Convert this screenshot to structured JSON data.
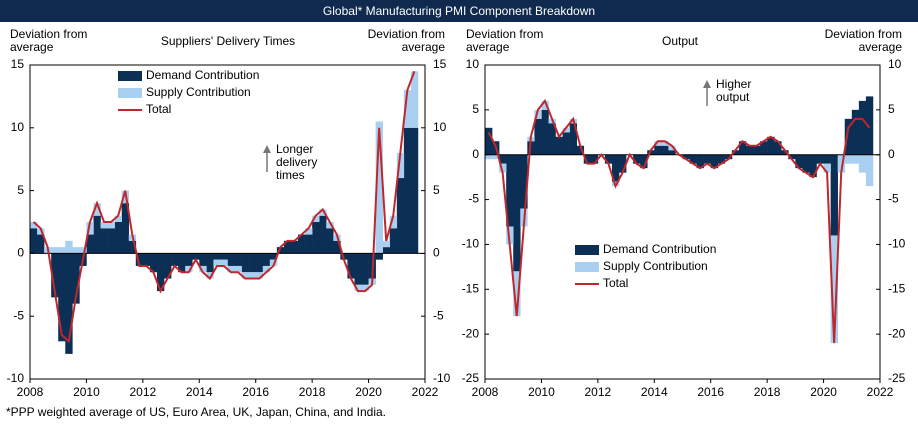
{
  "title": "Global* Manufacturing PMI Component Breakdown",
  "footnote": "*PPP weighted average of US, Euro Area, UK, Japan, China, and India.",
  "chart_data": [
    {
      "type": "stacked_bar_line",
      "title": "Suppliers' Delivery Times",
      "y_label": [
        "Deviation from",
        "average"
      ],
      "y2_label": [
        "Deviation from",
        "average"
      ],
      "annotation": [
        "Longer",
        "delivery",
        "times"
      ],
      "legend": "upper left",
      "x": [
        2008,
        2008.25,
        2008.5,
        2008.75,
        2009,
        2009.25,
        2009.5,
        2009.75,
        2010,
        2010.25,
        2010.5,
        2010.75,
        2011,
        2011.25,
        2011.5,
        2011.75,
        2012,
        2012.25,
        2012.5,
        2012.75,
        2013,
        2013.25,
        2013.5,
        2013.75,
        2014,
        2014.25,
        2014.5,
        2014.75,
        2015,
        2015.25,
        2015.5,
        2015.75,
        2016,
        2016.25,
        2016.5,
        2016.75,
        2017,
        2017.25,
        2017.5,
        2017.75,
        2018,
        2018.25,
        2018.5,
        2018.75,
        2019,
        2019.25,
        2019.5,
        2019.75,
        2020,
        2020.25,
        2020.5,
        2020.75,
        2021,
        2021.25,
        2021.5
      ],
      "series": [
        {
          "name": "Demand Contribution",
          "kind": "bar",
          "color": "#0b2f55",
          "values": [
            2,
            1.5,
            0,
            -3.5,
            -7,
            -8,
            -4,
            -1,
            1.5,
            3,
            2,
            2,
            2.5,
            4,
            1,
            -1,
            -1,
            -1.5,
            -3,
            -2,
            -1,
            -1.5,
            -1,
            -0.5,
            -1,
            -1.5,
            -0.5,
            -0.5,
            -1,
            -1,
            -1.5,
            -1.5,
            -1.5,
            -1,
            -0.5,
            0.5,
            1,
            1,
            1.5,
            1.5,
            2.5,
            3,
            2,
            1,
            -0.5,
            -2,
            -2.5,
            -2.5,
            -2,
            -0.5,
            0.5,
            2,
            6,
            10,
            10
          ]
        },
        {
          "name": "Supply Contribution",
          "kind": "bar",
          "color": "#a9d0f0",
          "values": [
            0.5,
            0.5,
            0.5,
            0.5,
            0.5,
            1,
            0.5,
            0.5,
            1,
            1,
            0.5,
            0.5,
            0.5,
            1,
            0.5,
            0,
            0,
            0,
            0,
            0,
            0,
            0,
            -0.5,
            0,
            -0.5,
            -0.5,
            -0.5,
            -0.5,
            -0.5,
            -0.5,
            -0.5,
            -0.5,
            -0.5,
            -0.5,
            -0.5,
            0,
            0,
            0,
            0,
            0.5,
            0.5,
            0.5,
            0.5,
            0.5,
            0,
            0,
            -0.5,
            -0.5,
            -0.5,
            10.5,
            0.5,
            1,
            2,
            3,
            4.5
          ]
        },
        {
          "name": "Total",
          "kind": "line",
          "color": "#c0272d",
          "values": [
            2.5,
            2,
            0.5,
            -3,
            -6.5,
            -7,
            -3.5,
            -0.5,
            2.5,
            4,
            2.5,
            2.5,
            3,
            5,
            1.5,
            -1,
            -1,
            -1.5,
            -3,
            -2,
            -1,
            -1.5,
            -1.5,
            -0.5,
            -1.5,
            -2,
            -1,
            -1,
            -1.5,
            -1.5,
            -2,
            -2,
            -2,
            -1.5,
            -1,
            0.5,
            1,
            1,
            1.5,
            2,
            3,
            3.5,
            2.5,
            1.5,
            -0.5,
            -2,
            -3,
            -3,
            -2.5,
            10,
            1,
            3,
            8,
            13,
            14.5
          ]
        }
      ],
      "xlim": [
        2008,
        2022
      ],
      "xticks": [
        2008,
        2010,
        2012,
        2014,
        2016,
        2018,
        2020,
        2022
      ],
      "ylim": [
        -10,
        15
      ],
      "yticks": [
        -10,
        -5,
        0,
        5,
        10,
        15
      ],
      "y2lim": [
        -10,
        15
      ],
      "y2ticks": [
        -10,
        -5,
        0,
        5,
        10,
        15
      ]
    },
    {
      "type": "stacked_bar_line",
      "title": "Output",
      "y_label": [
        "Deviation from",
        "average"
      ],
      "y2_label": [
        "Deviation from",
        "average"
      ],
      "annotation": [
        "Higher",
        "output"
      ],
      "legend": "lower left",
      "x": [
        2008,
        2008.25,
        2008.5,
        2008.75,
        2009,
        2009.25,
        2009.5,
        2009.75,
        2010,
        2010.25,
        2010.5,
        2010.75,
        2011,
        2011.25,
        2011.5,
        2011.75,
        2012,
        2012.25,
        2012.5,
        2012.75,
        2013,
        2013.25,
        2013.5,
        2013.75,
        2014,
        2014.25,
        2014.5,
        2014.75,
        2015,
        2015.25,
        2015.5,
        2015.75,
        2016,
        2016.25,
        2016.5,
        2016.75,
        2017,
        2017.25,
        2017.5,
        2017.75,
        2018,
        2018.25,
        2018.5,
        2018.75,
        2019,
        2019.25,
        2019.5,
        2019.75,
        2020,
        2020.25,
        2020.5,
        2020.75,
        2021,
        2021.25,
        2021.5
      ],
      "series": [
        {
          "name": "Demand Contribution",
          "kind": "bar",
          "color": "#0b2f55",
          "values": [
            3,
            1.5,
            -1,
            -8,
            -13,
            -6,
            1.5,
            4,
            5,
            3.5,
            2,
            2.5,
            3.5,
            1,
            -1,
            -1,
            0,
            -1,
            -3,
            -2,
            0,
            -1,
            -1.5,
            0.5,
            1,
            1,
            0.5,
            0,
            -0.5,
            -1,
            -1.5,
            -1,
            -1.5,
            -1,
            -0.5,
            0.5,
            1.5,
            1,
            1,
            1.5,
            2,
            1.5,
            0.5,
            -0.5,
            -1.5,
            -2,
            -2.5,
            -1,
            -1,
            -9,
            0,
            4,
            5,
            6,
            6.5
          ]
        },
        {
          "name": "Supply Contribution",
          "kind": "bar",
          "color": "#a9d0f0",
          "values": [
            -0.5,
            -0.5,
            -1,
            -2,
            -5,
            -2,
            0.5,
            1,
            1,
            0.5,
            0,
            0.5,
            0.5,
            0,
            0,
            0,
            0,
            0,
            -0.5,
            0,
            0,
            0,
            0,
            0,
            0.5,
            0.5,
            0.5,
            0,
            0,
            0,
            0,
            0,
            0,
            0,
            0,
            0,
            0,
            0,
            0,
            0,
            0,
            0,
            0,
            0,
            0,
            0,
            0,
            0,
            -1,
            -12,
            -2,
            -1,
            -1,
            -2,
            -3.5
          ]
        },
        {
          "name": "Total",
          "kind": "line",
          "color": "#c0272d",
          "values": [
            2.5,
            1,
            -2,
            -10,
            -18,
            -8,
            2,
            5,
            6,
            4,
            2,
            3,
            4,
            1,
            -1,
            -1,
            0,
            -1,
            -3.5,
            -2,
            0,
            -1,
            -1.5,
            0.5,
            1.5,
            1.5,
            1,
            0,
            -0.5,
            -1,
            -1.5,
            -1,
            -1.5,
            -1,
            -0.5,
            0.5,
            1.5,
            1,
            1,
            1.5,
            2,
            1.5,
            0.5,
            -0.5,
            -1.5,
            -2,
            -2.5,
            -1,
            -2,
            -21,
            -2,
            3,
            4,
            4,
            3
          ]
        }
      ],
      "xlim": [
        2008,
        2022
      ],
      "xticks": [
        2008,
        2010,
        2012,
        2014,
        2016,
        2018,
        2020,
        2022
      ],
      "ylim": [
        -25,
        10
      ],
      "yticks": [
        -25,
        -20,
        -15,
        -10,
        -5,
        0,
        5,
        10
      ],
      "y2lim": [
        -25,
        10
      ],
      "y2ticks": [
        -25,
        -20,
        -15,
        -10,
        -5,
        0,
        5,
        10
      ]
    }
  ]
}
